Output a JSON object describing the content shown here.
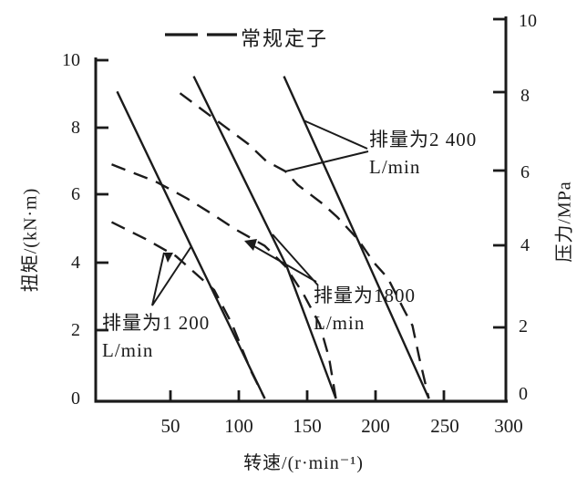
{
  "legend": {
    "dashed_label": "常规定子"
  },
  "axes": {
    "x": {
      "title": "转速/(r·min⁻¹)",
      "tick_labels": [
        "50",
        "100",
        "150",
        "200",
        "250",
        "300"
      ]
    },
    "y_left": {
      "title": "扭矩/(kN·m)",
      "tick_labels": [
        "10",
        "8",
        "6",
        "4",
        "2",
        "0"
      ]
    },
    "y_right": {
      "title": "压力/MPa",
      "tick_labels": [
        "10",
        "8",
        "6",
        "4",
        "2",
        "0"
      ]
    }
  },
  "annotations": {
    "d2400": {
      "line1": "排量为2 400",
      "line2": "L/min"
    },
    "d1800": {
      "line1": "排量为1800",
      "line2": "L/min"
    },
    "d1200": {
      "line1": "排量为1 200",
      "line2": "L/min"
    }
  },
  "chart_data": {
    "type": "line",
    "title": "",
    "xlabel": "转速/(r·min⁻¹)",
    "ylabel_left": "扭矩/(kN·m)",
    "ylabel_right": "压力/MPa",
    "xlim": [
      0,
      300
    ],
    "ylim_left": [
      0,
      10
    ],
    "ylim_right": [
      0,
      10
    ],
    "grid": false,
    "legend_position": "top",
    "legend": [
      {
        "style": "dashed",
        "label": "常规定子"
      }
    ],
    "colors": {
      "line": "#1b1b1b",
      "background": "#ffffff"
    },
    "series": [
      {
        "group": "排量为1 200 L/min",
        "style": "solid",
        "points": [
          [
            11,
            9.05
          ],
          [
            65,
            4.5
          ],
          [
            119,
            0
          ]
        ]
      },
      {
        "group": "排量为1 200 L/min",
        "stator": "常规定子",
        "style": "dashed",
        "points": [
          [
            7,
            5.2
          ],
          [
            32,
            4.7
          ],
          [
            54,
            4.2
          ],
          [
            68,
            3.7
          ],
          [
            82,
            3.2
          ],
          [
            95,
            2.2
          ],
          [
            109,
            0.8
          ],
          [
            119,
            0
          ]
        ]
      },
      {
        "group": "排量为1800 L/min",
        "style": "solid",
        "points": [
          [
            67,
            9.5
          ],
          [
            135,
            3.9
          ],
          [
            171,
            0
          ]
        ]
      },
      {
        "group": "排量为1800 L/min",
        "stator": "常规定子",
        "style": "dashed",
        "points": [
          [
            7,
            6.9
          ],
          [
            39,
            6.4
          ],
          [
            62,
            5.9
          ],
          [
            82,
            5.4
          ],
          [
            97,
            5.0
          ],
          [
            119,
            4.5
          ],
          [
            134,
            3.9
          ],
          [
            147,
            3.1
          ],
          [
            159,
            2.2
          ],
          [
            166,
            1.2
          ],
          [
            171,
            0
          ]
        ]
      },
      {
        "group": "排量为2 400 L/min",
        "style": "solid",
        "points": [
          [
            133,
            9.5
          ],
          [
            189,
            4.5
          ],
          [
            239,
            0
          ]
        ]
      },
      {
        "group": "排量为2 400 L/min",
        "stator": "常规定子",
        "style": "dashed",
        "points": [
          [
            57,
            9.0
          ],
          [
            87,
            8.1
          ],
          [
            107,
            7.5
          ],
          [
            120,
            7.0
          ],
          [
            134,
            6.7
          ],
          [
            143,
            6.3
          ],
          [
            161,
            5.75
          ],
          [
            172,
            5.35
          ],
          [
            187,
            4.7
          ],
          [
            199,
            4.0
          ],
          [
            209,
            3.55
          ],
          [
            221,
            2.6
          ],
          [
            227,
            2.15
          ],
          [
            232,
            1.2
          ],
          [
            239,
            0
          ]
        ]
      }
    ]
  }
}
